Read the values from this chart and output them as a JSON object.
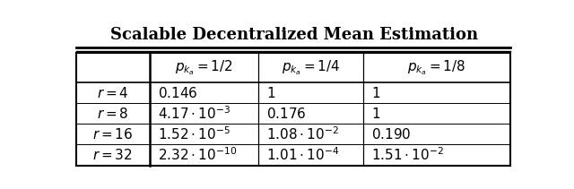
{
  "title": "Scalable Decentralized Mean Estimation",
  "col_headers": [
    "$p_{k_a} = 1/2$",
    "$p_{k_a} = 1/4$",
    "$p_{k_a} = 1/8$"
  ],
  "row_headers": [
    "$r = 4$",
    "$r = 8$",
    "$r = 16$",
    "$r = 32$"
  ],
  "cell_data": [
    [
      "$0.146$",
      "$1$",
      "$1$"
    ],
    [
      "$4.17 \\cdot 10^{-3}$",
      "$0.176$",
      "$1$"
    ],
    [
      "$1.52 \\cdot 10^{-5}$",
      "$1.08 \\cdot 10^{-2}$",
      "$0.190$"
    ],
    [
      "$2.32 \\cdot 10^{-10}$",
      "$1.01 \\cdot 10^{-4}$",
      "$1.51 \\cdot 10^{-2}$"
    ]
  ],
  "background_color": "#ffffff",
  "text_color": "#000000",
  "title_fontsize": 13,
  "cell_fontsize": 11,
  "header_fontsize": 11
}
